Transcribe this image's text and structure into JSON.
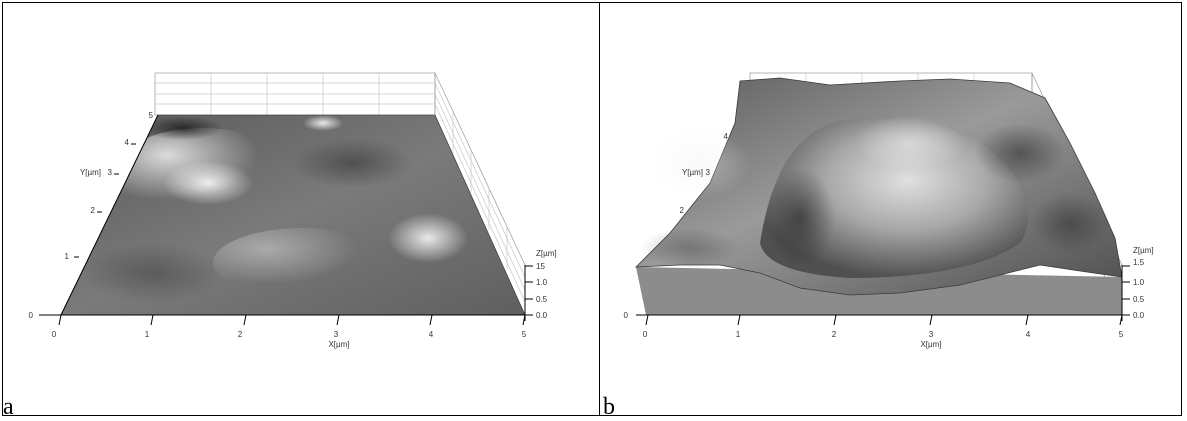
{
  "panels": [
    {
      "label": "a",
      "x_axis": {
        "title": "X[µm]",
        "ticks": [
          "0",
          "1",
          "2",
          "3",
          "4",
          "5"
        ]
      },
      "y_axis": {
        "title": "Y[µm]",
        "ticks": [
          "0",
          "1",
          "2",
          "3",
          "4",
          "5"
        ]
      },
      "z_axis": {
        "title": "Z[µm]",
        "ticks": [
          "15",
          "1.0",
          "0.5",
          "0.0"
        ]
      }
    },
    {
      "label": "b",
      "x_axis": {
        "title": "X[µm]",
        "ticks": [
          "0",
          "1",
          "2",
          "3",
          "4",
          "5"
        ]
      },
      "y_axis": {
        "title": "Y[µm]",
        "ticks": [
          "0",
          "2",
          "3",
          "4"
        ]
      },
      "z_axis": {
        "title": "Z[µm]",
        "ticks": [
          "1.5",
          "1.0",
          "0.5",
          "0.0"
        ]
      }
    }
  ],
  "colors": {
    "surface_a_base": "#6f6f6f",
    "surface_b_base": "#7a7a7a",
    "base_block": "#8c8c8c",
    "axis": "#000000",
    "grid": "#c8c8c8"
  }
}
